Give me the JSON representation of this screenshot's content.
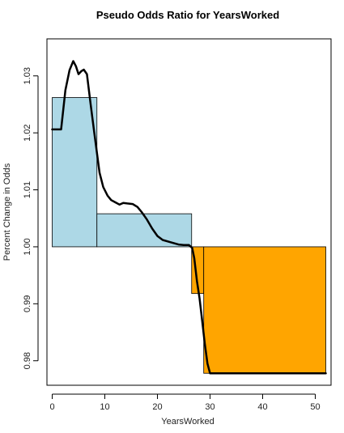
{
  "chart_data": {
    "type": "step-bar-line",
    "title": "Pseudo Odds Ratio for YearsWorked",
    "xlabel": "YearsWorked",
    "ylabel": "Percent Change in Odds",
    "xlim": [
      -1,
      53
    ],
    "ylim": [
      0.9757,
      1.0365
    ],
    "x_ticks": [
      0,
      10,
      20,
      30,
      40,
      50
    ],
    "x_tick_labels": [
      "0",
      "10",
      "20",
      "30",
      "40",
      "50"
    ],
    "y_ticks": [
      0.98,
      0.99,
      1.0,
      1.01,
      1.02,
      1.03
    ],
    "y_tick_labels": [
      "0.98",
      "0.99",
      "1.00",
      "1.01",
      "1.02",
      "1.03"
    ],
    "baseline": 1.0,
    "bars": [
      {
        "x0": 0,
        "x1": 8.5,
        "y": 1.0262,
        "color": "#add8e6"
      },
      {
        "x0": 8.5,
        "x1": 26.5,
        "y": 1.0058,
        "color": "#add8e6"
      },
      {
        "x0": 26.5,
        "x1": 28.8,
        "y": 0.9918,
        "color": "#ffa500"
      },
      {
        "x0": 28.8,
        "x1": 52,
        "y": 0.9778,
        "color": "#ffa500"
      }
    ],
    "line": {
      "color": "#000000",
      "x": [
        0,
        1.7,
        2.5,
        3.3,
        4.0,
        4.5,
        5.0,
        5.5,
        6.0,
        6.6,
        7.3,
        8.0,
        9.0,
        9.7,
        10.5,
        11.2,
        12.0,
        12.8,
        13.5,
        14.3,
        15.3,
        16.2,
        17.0,
        18.0,
        19.0,
        20.0,
        21.0,
        22.5,
        24.0,
        25.0,
        26.0,
        26.6,
        27.0,
        27.5,
        28.0,
        28.5,
        29.0,
        29.5,
        30.0,
        35,
        40,
        45,
        50,
        52
      ],
      "y": [
        1.0206,
        1.0206,
        1.0275,
        1.031,
        1.0326,
        1.0317,
        1.0303,
        1.0308,
        1.0311,
        1.0303,
        1.025,
        1.02,
        1.013,
        1.0105,
        1.009,
        1.0082,
        1.0078,
        1.0074,
        1.0077,
        1.0076,
        1.0075,
        1.007,
        1.0061,
        1.0048,
        1.0032,
        1.0019,
        1.0012,
        1.0008,
        1.0004,
        1.0003,
        1.0003,
        0.9998,
        0.998,
        0.994,
        0.991,
        0.987,
        0.983,
        0.9795,
        0.9778,
        0.9778,
        0.9778,
        0.9778,
        0.9778,
        0.9778
      ]
    }
  }
}
